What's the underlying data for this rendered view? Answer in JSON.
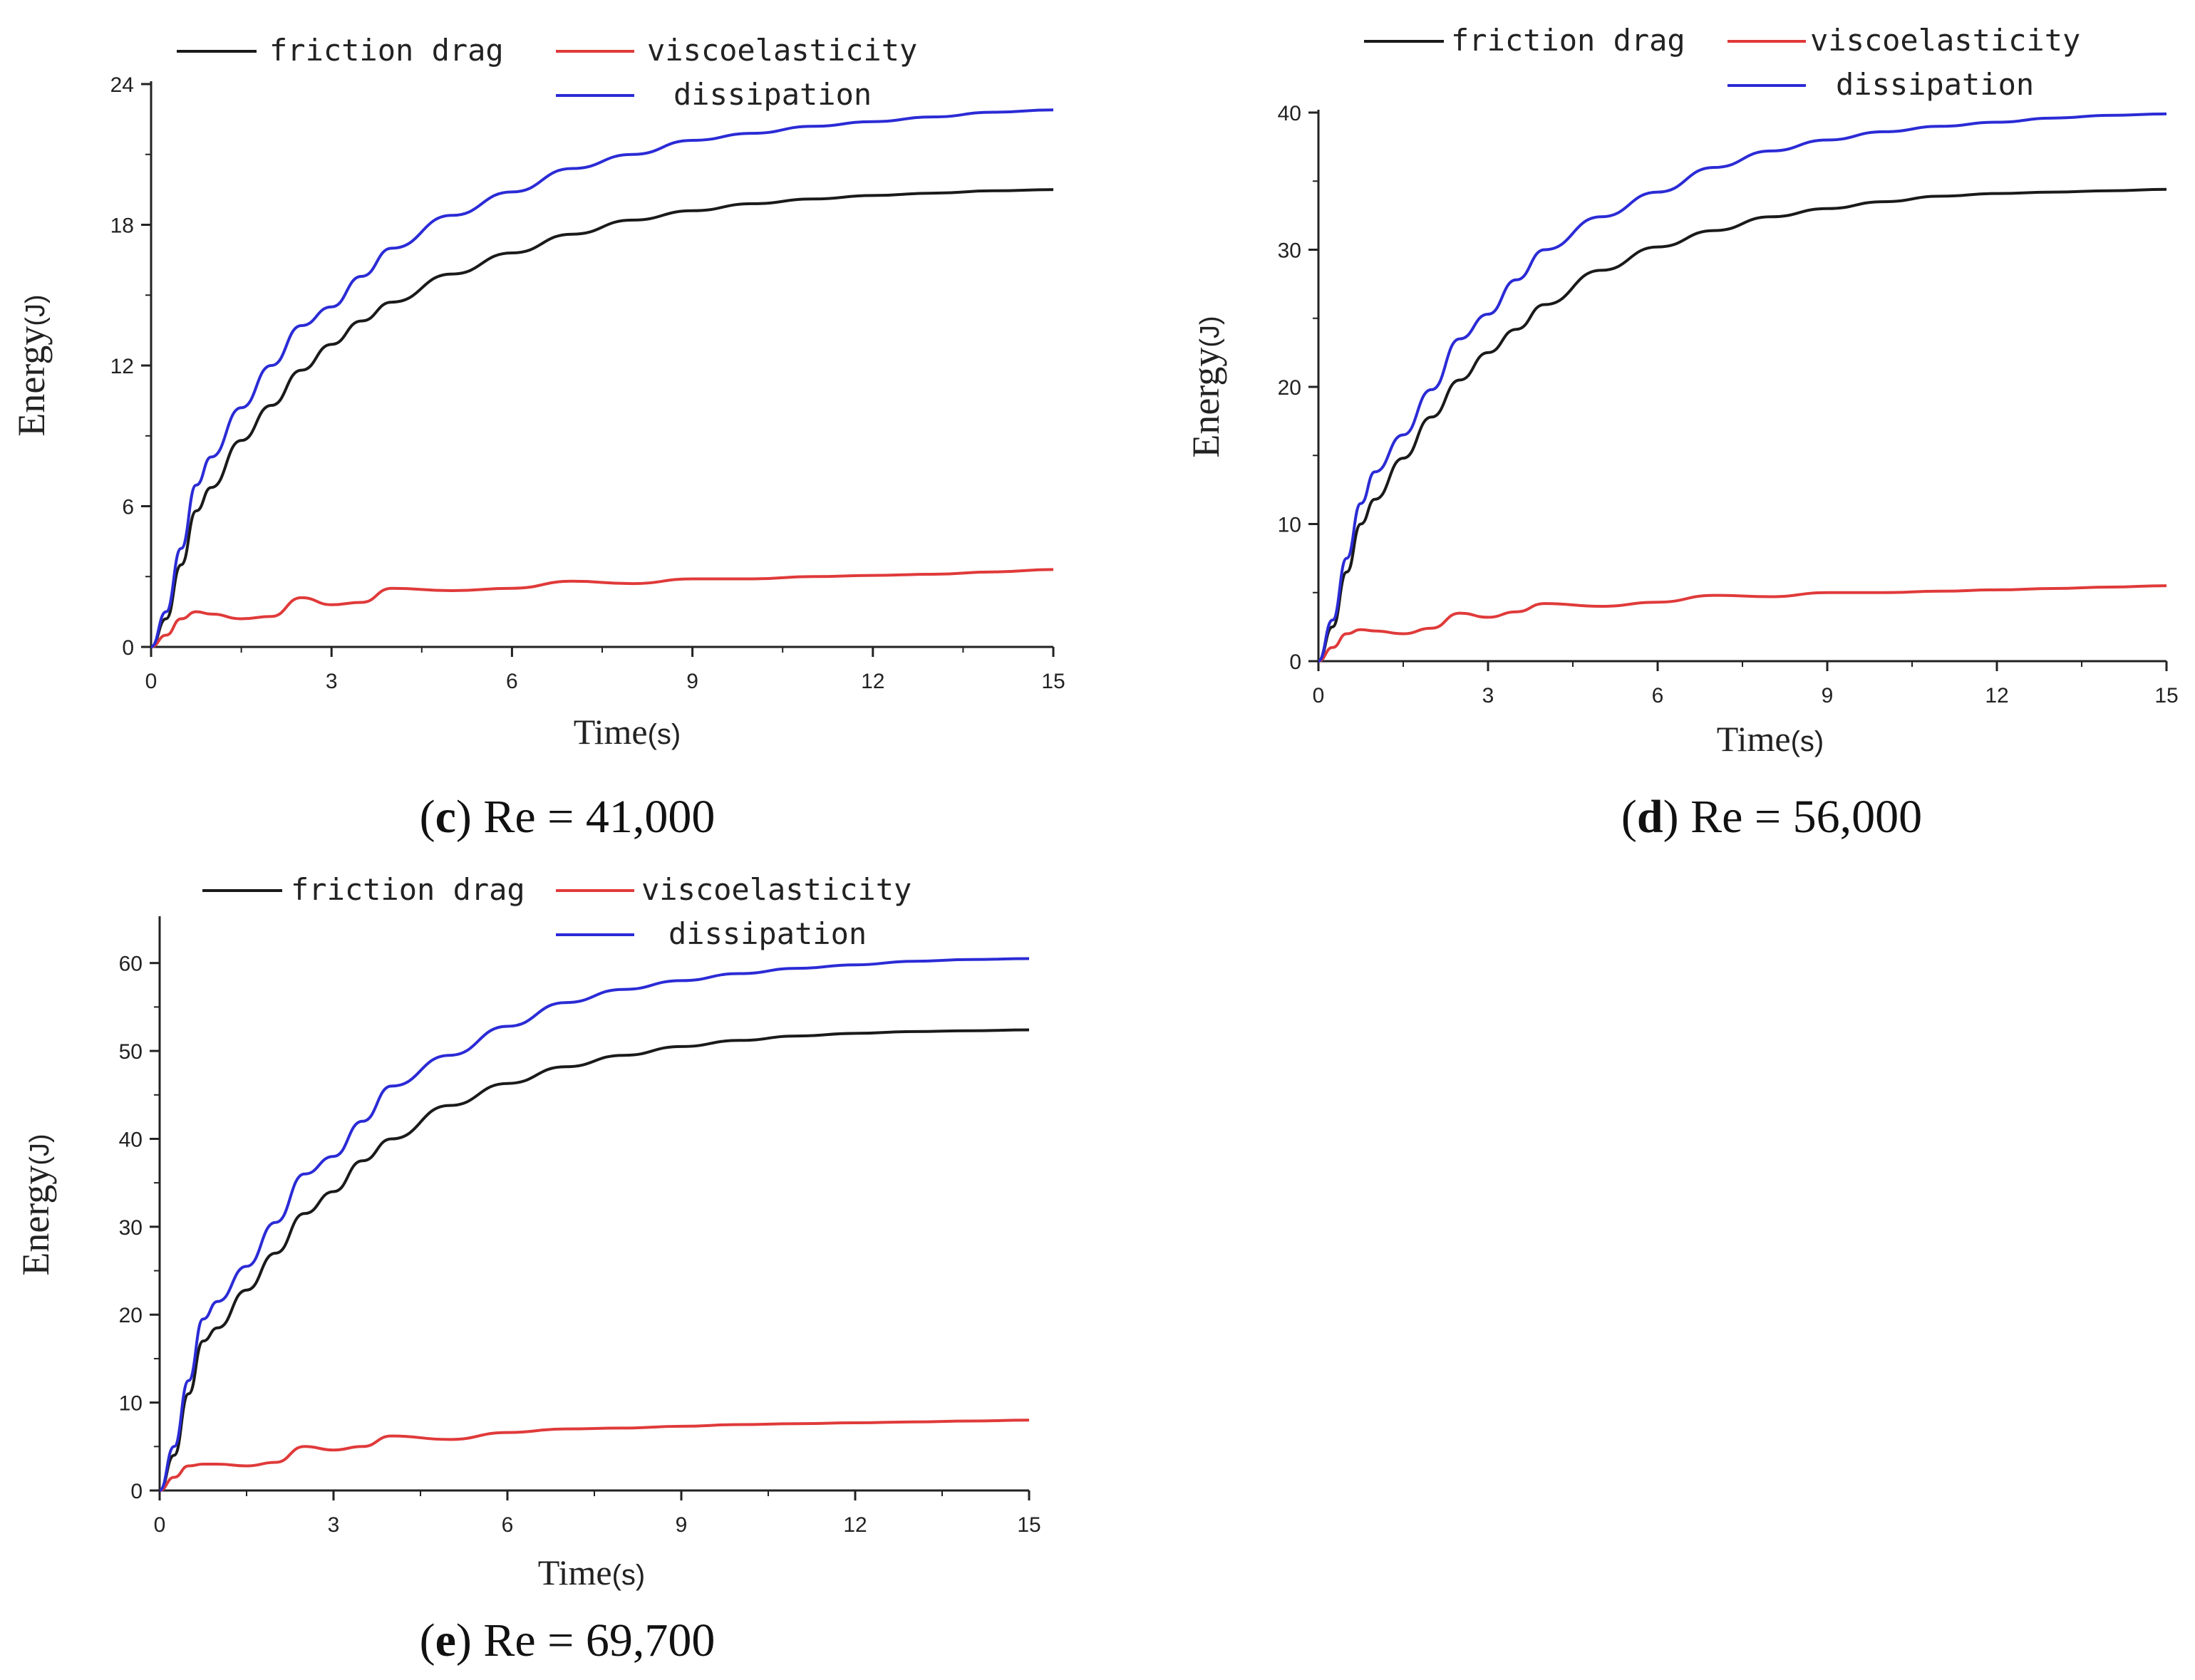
{
  "chart_data": [
    {
      "type": "line",
      "panel_letter": "c",
      "caption_rest": ") Re = 41,000",
      "xlabel": "Time",
      "xlabel_unit": "(s)",
      "ylabel": "Energy",
      "ylabel_unit": "(J)",
      "xlim": [
        0,
        15
      ],
      "ylim": [
        0,
        24
      ],
      "x_ticks": [
        0,
        3,
        6,
        9,
        12,
        15
      ],
      "y_ticks": [
        0,
        6,
        12,
        18,
        24
      ],
      "legend": {
        "position": "top",
        "items": [
          "friction drag",
          "viscoelasticity",
          "dissipation"
        ]
      },
      "x": [
        0,
        0.25,
        0.5,
        0.75,
        1,
        1.5,
        2,
        2.5,
        3,
        3.5,
        4,
        5,
        6,
        7,
        8,
        9,
        10,
        11,
        12,
        13,
        14,
        15
      ],
      "series": [
        {
          "name": "friction drag",
          "color": "#1a1a1a",
          "values": [
            0,
            1.2,
            3.5,
            5.8,
            6.8,
            8.8,
            10.3,
            11.8,
            12.9,
            13.9,
            14.7,
            15.9,
            16.8,
            17.6,
            18.2,
            18.6,
            18.9,
            19.1,
            19.25,
            19.35,
            19.45,
            19.5
          ]
        },
        {
          "name": "viscoelasticity",
          "color": "#e03a3a",
          "values": [
            0,
            0.5,
            1.2,
            1.5,
            1.4,
            1.2,
            1.3,
            2.1,
            1.8,
            1.9,
            2.5,
            2.4,
            2.5,
            2.8,
            2.7,
            2.9,
            2.9,
            3.0,
            3.05,
            3.1,
            3.2,
            3.3
          ]
        },
        {
          "name": "dissipation",
          "color": "#2b2bd6",
          "values": [
            0,
            1.5,
            4.2,
            6.9,
            8.1,
            10.2,
            12.0,
            13.7,
            14.5,
            15.8,
            17.0,
            18.4,
            19.4,
            20.4,
            21.0,
            21.6,
            21.9,
            22.2,
            22.4,
            22.6,
            22.8,
            22.9
          ]
        }
      ]
    },
    {
      "type": "line",
      "panel_letter": "d",
      "caption_rest": ") Re = 56,000",
      "xlabel": "Time",
      "xlabel_unit": "(s)",
      "ylabel": "Energy",
      "ylabel_unit": "(J)",
      "xlim": [
        0,
        15
      ],
      "ylim": [
        0,
        40
      ],
      "x_ticks": [
        0,
        3,
        6,
        9,
        12,
        15
      ],
      "y_ticks": [
        0,
        10,
        20,
        30,
        40
      ],
      "legend": {
        "position": "top",
        "items": [
          "friction drag",
          "viscoelasticity",
          "dissipation"
        ]
      },
      "x": [
        0,
        0.25,
        0.5,
        0.75,
        1,
        1.5,
        2,
        2.5,
        3,
        3.5,
        4,
        5,
        6,
        7,
        8,
        9,
        10,
        11,
        12,
        13,
        14,
        15
      ],
      "series": [
        {
          "name": "friction drag",
          "color": "#1a1a1a",
          "values": [
            0,
            2.5,
            6.5,
            10.0,
            11.8,
            14.8,
            17.8,
            20.5,
            22.5,
            24.2,
            26.0,
            28.5,
            30.2,
            31.4,
            32.4,
            33.0,
            33.5,
            33.9,
            34.1,
            34.2,
            34.3,
            34.4
          ]
        },
        {
          "name": "viscoelasticity",
          "color": "#e03a3a",
          "values": [
            0,
            1.0,
            2.0,
            2.3,
            2.2,
            2.0,
            2.4,
            3.5,
            3.2,
            3.6,
            4.2,
            4.0,
            4.3,
            4.8,
            4.7,
            5.0,
            5.0,
            5.1,
            5.2,
            5.3,
            5.4,
            5.5
          ]
        },
        {
          "name": "dissipation",
          "color": "#2b2bd6",
          "values": [
            0,
            3.0,
            7.5,
            11.5,
            13.8,
            16.5,
            19.8,
            23.5,
            25.3,
            27.8,
            30.0,
            32.4,
            34.2,
            36.0,
            37.2,
            38.0,
            38.6,
            39.0,
            39.3,
            39.6,
            39.8,
            39.9
          ]
        }
      ]
    },
    {
      "type": "line",
      "panel_letter": "e",
      "caption_rest": ") Re = 69,700",
      "xlabel": "Time",
      "xlabel_unit": "(s)",
      "ylabel": "Energy",
      "ylabel_unit": "(J)",
      "xlim": [
        0,
        15
      ],
      "ylim": [
        0,
        65
      ],
      "x_ticks": [
        0,
        3,
        6,
        9,
        12,
        15
      ],
      "y_ticks": [
        0,
        10,
        20,
        30,
        40,
        50,
        60
      ],
      "legend": {
        "position": "top",
        "items": [
          "friction drag",
          "viscoelasticity",
          "dissipation"
        ]
      },
      "x": [
        0,
        0.25,
        0.5,
        0.75,
        1,
        1.5,
        2,
        2.5,
        3,
        3.5,
        4,
        5,
        6,
        7,
        8,
        9,
        10,
        11,
        12,
        13,
        14,
        15
      ],
      "series": [
        {
          "name": "friction drag",
          "color": "#1a1a1a",
          "values": [
            0,
            4.0,
            11.0,
            17.0,
            18.5,
            22.8,
            27.0,
            31.5,
            34.0,
            37.5,
            40.0,
            43.8,
            46.3,
            48.2,
            49.5,
            50.5,
            51.2,
            51.7,
            52.0,
            52.2,
            52.3,
            52.4
          ]
        },
        {
          "name": "viscoelasticity",
          "color": "#e03a3a",
          "values": [
            0,
            1.5,
            2.8,
            3.0,
            3.0,
            2.8,
            3.2,
            5.0,
            4.6,
            5.0,
            6.2,
            5.8,
            6.6,
            7.0,
            7.1,
            7.3,
            7.5,
            7.6,
            7.7,
            7.8,
            7.9,
            8.0
          ]
        },
        {
          "name": "dissipation",
          "color": "#2b2bd6",
          "values": [
            0,
            5.0,
            12.5,
            19.5,
            21.5,
            25.5,
            30.5,
            36.0,
            38.0,
            42.0,
            46.0,
            49.5,
            52.8,
            55.5,
            57.0,
            58.0,
            58.8,
            59.4,
            59.8,
            60.2,
            60.4,
            60.5
          ]
        }
      ]
    }
  ]
}
